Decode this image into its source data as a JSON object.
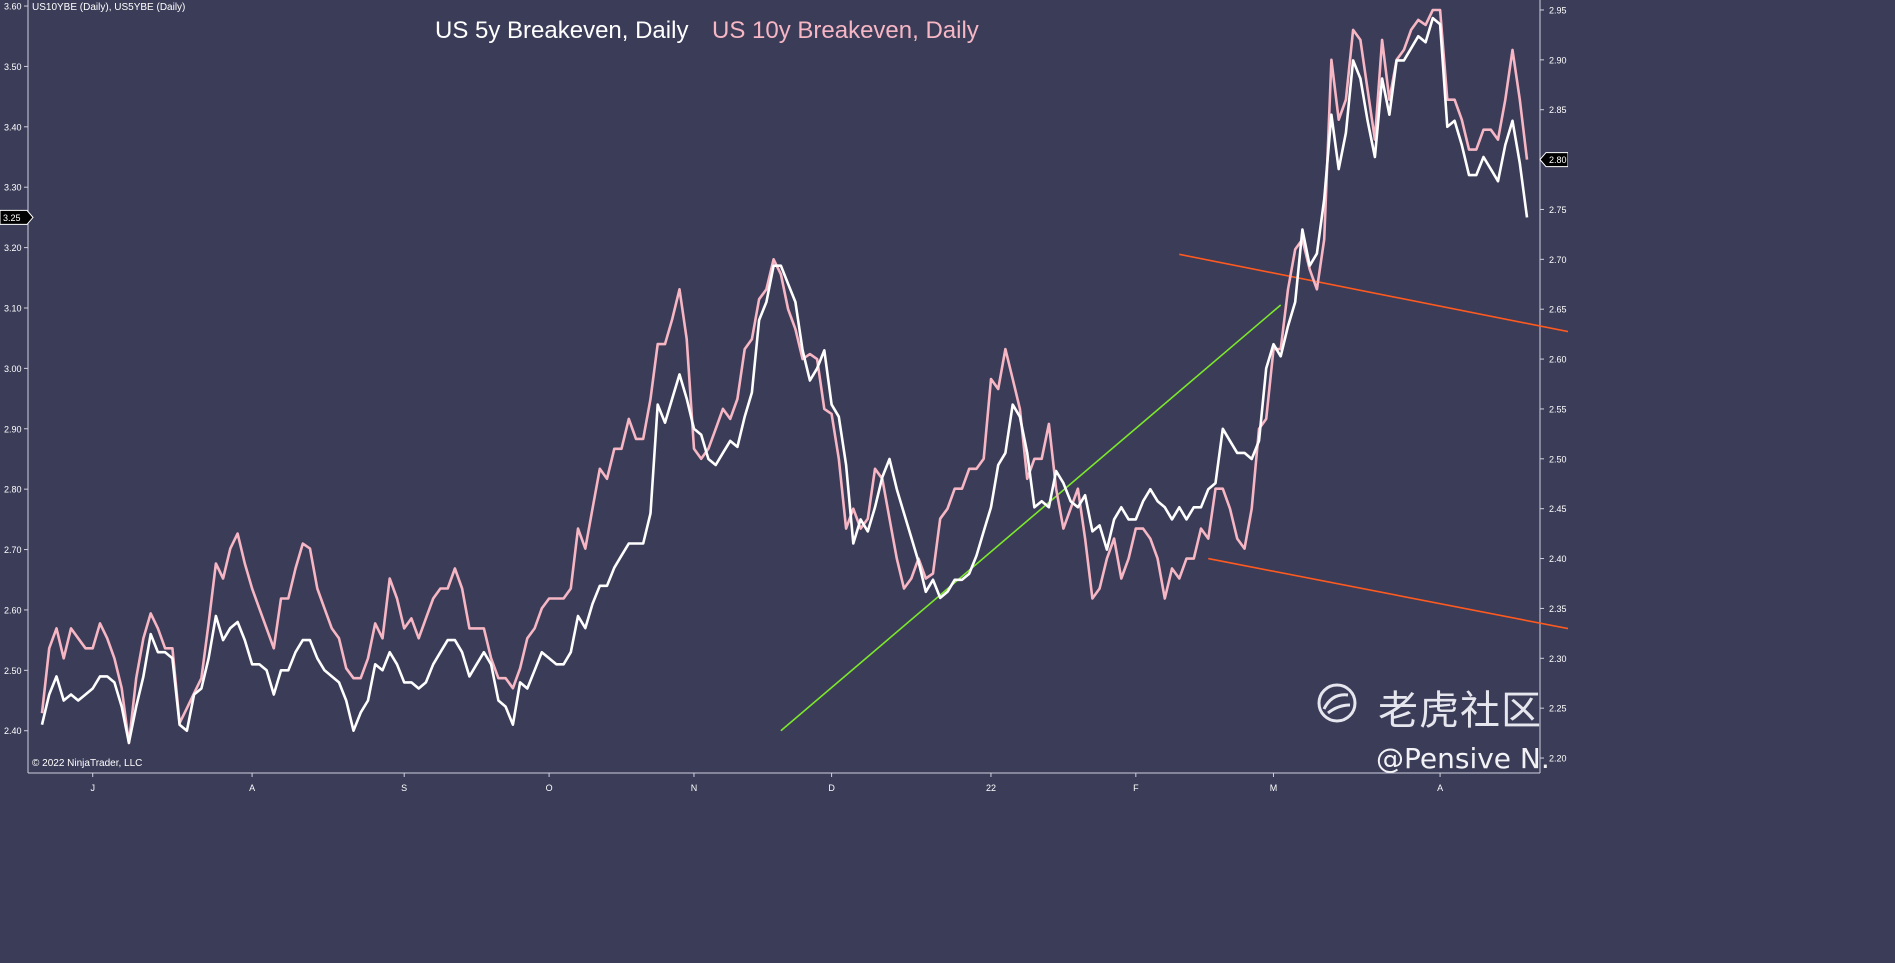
{
  "header_label": "US10YBE (Daily), US5YBE (Daily)",
  "copyright": "© 2022 NinjaTrader, LLC",
  "watermark": {
    "site": "老虎社区",
    "user": "@Pensive N."
  },
  "colors": {
    "background": "#3b3c58",
    "series_5y": "#ffffff",
    "series_10y": "#f6b6c4",
    "support_trend": "#7be82a",
    "channel": "#ff5a1f",
    "axis_text": "#ffffff"
  },
  "chart_data": {
    "type": "line",
    "title": [
      "US 5y Breakeven, Daily",
      "US 10y Breakeven, Daily"
    ],
    "x_labels": [
      "J",
      "A",
      "S",
      "O",
      "N",
      "D",
      "22",
      "F",
      "M",
      "A"
    ],
    "left_axis": {
      "ticks": [
        "3.60",
        "3.50",
        "3.40",
        "3.30",
        "3.20",
        "3.10",
        "3.00",
        "2.90",
        "2.80",
        "2.70",
        "2.60",
        "2.50",
        "2.40"
      ],
      "range": [
        2.33,
        3.61
      ],
      "last_value_marker": "3.25"
    },
    "right_axis": {
      "ticks": [
        "2.95",
        "2.90",
        "2.85",
        "2.80",
        "2.75",
        "2.70",
        "2.65",
        "2.60",
        "2.55",
        "2.50",
        "2.45",
        "2.40",
        "2.35",
        "2.30",
        "2.25",
        "2.20"
      ],
      "range": [
        2.185,
        2.96
      ],
      "last_value_marker": "2.80"
    },
    "series": [
      {
        "name": "US 5y Breakeven, Daily",
        "axis": "left",
        "values": [
          2.41,
          2.46,
          2.49,
          2.45,
          2.46,
          2.45,
          2.46,
          2.47,
          2.49,
          2.49,
          2.48,
          2.44,
          2.38,
          2.44,
          2.49,
          2.56,
          2.53,
          2.53,
          2.52,
          2.41,
          2.4,
          2.46,
          2.47,
          2.52,
          2.59,
          2.55,
          2.57,
          2.58,
          2.55,
          2.51,
          2.51,
          2.5,
          2.46,
          2.5,
          2.5,
          2.53,
          2.55,
          2.55,
          2.52,
          2.5,
          2.49,
          2.48,
          2.45,
          2.4,
          2.43,
          2.45,
          2.51,
          2.5,
          2.53,
          2.51,
          2.48,
          2.48,
          2.47,
          2.48,
          2.51,
          2.53,
          2.55,
          2.55,
          2.53,
          2.49,
          2.51,
          2.53,
          2.51,
          2.45,
          2.44,
          2.41,
          2.48,
          2.47,
          2.5,
          2.53,
          2.52,
          2.51,
          2.51,
          2.53,
          2.59,
          2.57,
          2.61,
          2.64,
          2.64,
          2.67,
          2.69,
          2.71,
          2.71,
          2.71,
          2.76,
          2.94,
          2.91,
          2.95,
          2.99,
          2.95,
          2.9,
          2.89,
          2.85,
          2.84,
          2.86,
          2.88,
          2.87,
          2.92,
          2.96,
          3.08,
          3.11,
          3.17,
          3.17,
          3.14,
          3.11,
          3.03,
          2.98,
          3.0,
          3.03,
          2.94,
          2.92,
          2.84,
          2.71,
          2.75,
          2.73,
          2.77,
          2.82,
          2.85,
          2.8,
          2.76,
          2.72,
          2.68,
          2.63,
          2.65,
          2.62,
          2.63,
          2.65,
          2.65,
          2.66,
          2.69,
          2.73,
          2.77,
          2.84,
          2.86,
          2.94,
          2.92,
          2.86,
          2.77,
          2.78,
          2.77,
          2.83,
          2.81,
          2.78,
          2.77,
          2.79,
          2.73,
          2.74,
          2.7,
          2.75,
          2.77,
          2.75,
          2.75,
          2.78,
          2.8,
          2.78,
          2.77,
          2.75,
          2.77,
          2.75,
          2.77,
          2.77,
          2.8,
          2.81,
          2.9,
          2.88,
          2.86,
          2.86,
          2.85,
          2.88,
          3.0,
          3.04,
          3.02,
          3.07,
          3.11,
          3.23,
          3.17,
          3.19,
          3.28,
          3.42,
          3.33,
          3.39,
          3.51,
          3.48,
          3.41,
          3.35,
          3.48,
          3.42,
          3.51,
          3.51,
          3.53,
          3.55,
          3.54,
          3.58,
          3.57,
          3.4,
          3.41,
          3.37,
          3.32,
          3.32,
          3.35,
          3.33,
          3.31,
          3.37,
          3.41,
          3.34,
          3.25
        ]
      },
      {
        "name": "US 10y Breakeven, Daily",
        "axis": "right",
        "values": [
          2.245,
          2.31,
          2.33,
          2.3,
          2.33,
          2.32,
          2.31,
          2.31,
          2.335,
          2.32,
          2.3,
          2.27,
          2.215,
          2.28,
          2.32,
          2.345,
          2.33,
          2.31,
          2.31,
          2.235,
          2.25,
          2.265,
          2.28,
          2.335,
          2.395,
          2.38,
          2.41,
          2.425,
          2.395,
          2.37,
          2.35,
          2.33,
          2.31,
          2.36,
          2.36,
          2.39,
          2.415,
          2.41,
          2.37,
          2.35,
          2.33,
          2.32,
          2.29,
          2.28,
          2.28,
          2.3,
          2.335,
          2.32,
          2.38,
          2.36,
          2.33,
          2.34,
          2.32,
          2.34,
          2.36,
          2.37,
          2.37,
          2.39,
          2.37,
          2.33,
          2.33,
          2.33,
          2.3,
          2.28,
          2.28,
          2.27,
          2.29,
          2.32,
          2.33,
          2.35,
          2.36,
          2.36,
          2.36,
          2.37,
          2.43,
          2.41,
          2.45,
          2.49,
          2.48,
          2.51,
          2.51,
          2.54,
          2.52,
          2.52,
          2.56,
          2.615,
          2.615,
          2.64,
          2.67,
          2.62,
          2.51,
          2.5,
          2.51,
          2.53,
          2.55,
          2.54,
          2.56,
          2.61,
          2.62,
          2.66,
          2.67,
          2.7,
          2.685,
          2.65,
          2.63,
          2.6,
          2.605,
          2.6,
          2.55,
          2.545,
          2.5,
          2.43,
          2.45,
          2.43,
          2.44,
          2.49,
          2.48,
          2.44,
          2.4,
          2.37,
          2.38,
          2.4,
          2.38,
          2.385,
          2.44,
          2.45,
          2.47,
          2.47,
          2.49,
          2.49,
          2.5,
          2.58,
          2.57,
          2.61,
          2.58,
          2.55,
          2.48,
          2.5,
          2.5,
          2.535,
          2.47,
          2.43,
          2.45,
          2.47,
          2.42,
          2.36,
          2.37,
          2.4,
          2.42,
          2.38,
          2.4,
          2.43,
          2.43,
          2.42,
          2.4,
          2.36,
          2.39,
          2.38,
          2.4,
          2.4,
          2.43,
          2.42,
          2.47,
          2.47,
          2.45,
          2.42,
          2.41,
          2.45,
          2.53,
          2.54,
          2.61,
          2.61,
          2.67,
          2.71,
          2.72,
          2.69,
          2.67,
          2.72,
          2.9,
          2.84,
          2.86,
          2.93,
          2.92,
          2.87,
          2.82,
          2.92,
          2.86,
          2.9,
          2.91,
          2.93,
          2.94,
          2.935,
          2.95,
          2.95,
          2.86,
          2.86,
          2.84,
          2.81,
          2.81,
          2.83,
          2.83,
          2.82,
          2.86,
          2.91,
          2.86,
          2.8
        ]
      }
    ],
    "trendlines": [
      {
        "label": "support",
        "color": "support_trend",
        "axis": "left",
        "points": [
          [
            102,
            2.4
          ],
          [
            171,
            3.105
          ]
        ]
      },
      {
        "label": "channel-top",
        "color": "channel",
        "axis": "right",
        "points": [
          [
            157,
            2.705
          ],
          [
            306,
            2.49
          ]
        ]
      },
      {
        "label": "channel-bottom",
        "color": "channel",
        "axis": "right",
        "points": [
          [
            161,
            2.4
          ],
          [
            306,
            2.195
          ]
        ]
      }
    ]
  }
}
